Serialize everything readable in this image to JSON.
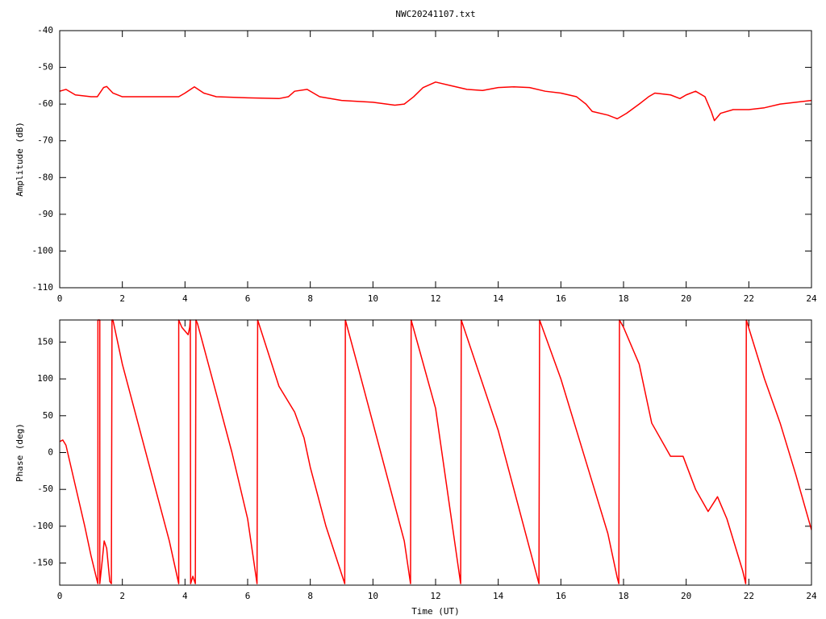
{
  "chart_data": [
    {
      "type": "line",
      "title": "NWC20241107.txt",
      "ylabel": "Amplitude (dB)",
      "xlim": [
        0,
        24
      ],
      "xticks": [
        0,
        2,
        4,
        6,
        8,
        10,
        12,
        14,
        16,
        18,
        20,
        22,
        24
      ],
      "ylim": [
        -110,
        -40
      ],
      "yticks": [
        -110,
        -100,
        -90,
        -80,
        -70,
        -60,
        -50,
        -40
      ],
      "x": [
        0,
        0.2,
        0.5,
        1,
        1.2,
        1.4,
        1.5,
        1.7,
        2,
        3,
        3.8,
        4,
        4.3,
        4.6,
        5,
        6,
        7,
        7.3,
        7.5,
        7.9,
        8.3,
        9,
        10,
        10.7,
        11,
        11.3,
        11.6,
        12,
        12.5,
        13,
        13.5,
        14,
        14.5,
        15,
        15.5,
        16,
        16.5,
        16.8,
        17,
        17.5,
        17.8,
        18.1,
        18.5,
        18.8,
        19,
        19.5,
        19.8,
        20,
        20.3,
        20.6,
        20.8,
        20.9,
        21.1,
        21.5,
        22,
        22.5,
        23,
        23.5,
        24
      ],
      "series": [
        {
          "color": "#ff0000",
          "values": [
            -56.5,
            -56,
            -57.5,
            -58,
            -58,
            -55.5,
            -55.2,
            -57,
            -58,
            -58,
            -58,
            -57,
            -55.3,
            -57,
            -58,
            -58.3,
            -58.5,
            -58,
            -56.5,
            -56,
            -58,
            -59,
            -59.5,
            -60.3,
            -60,
            -58,
            -55.5,
            -54,
            -55,
            -56,
            -56.3,
            -55.5,
            -55.3,
            -55.5,
            -56.5,
            -57,
            -58,
            -60,
            -62,
            -63,
            -64,
            -62.5,
            -60,
            -58,
            -57,
            -57.5,
            -58.5,
            -57.5,
            -56.5,
            -58,
            -62,
            -64.5,
            -62.5,
            -61.5,
            -61.5,
            -61,
            -60,
            -59.5,
            -59
          ]
        }
      ]
    },
    {
      "type": "line",
      "xlabel": "Time (UT)",
      "ylabel": "Phase (deg)",
      "xlim": [
        0,
        24
      ],
      "xticks": [
        0,
        2,
        4,
        6,
        8,
        10,
        12,
        14,
        16,
        18,
        20,
        22,
        24
      ],
      "ylim": [
        -180,
        180
      ],
      "yticks": [
        -150,
        -100,
        -50,
        0,
        50,
        100,
        150
      ],
      "x": [
        0,
        0.1,
        0.2,
        0.5,
        0.8,
        1.0,
        1.2,
        1.22,
        1.22,
        1.28,
        1.28,
        1.35,
        1.42,
        1.5,
        1.6,
        1.65,
        1.67,
        1.7,
        2,
        2.5,
        3,
        3.5,
        3.8,
        3.8,
        3.9,
        4.1,
        4.15,
        4.17,
        4.18,
        4.25,
        4.33,
        4.35,
        4.4,
        5,
        5.5,
        6,
        6.3,
        6.32,
        7,
        7.5,
        7.8,
        8,
        8.5,
        9.1,
        9.12,
        9.5,
        10,
        10.5,
        11,
        11.2,
        11.22,
        12,
        12.8,
        12.82,
        14,
        15.3,
        15.32,
        16,
        16.5,
        17,
        17.5,
        17.8,
        17.85,
        17.87,
        18,
        18.5,
        18.9,
        19.5,
        19.9,
        20.3,
        20.7,
        21,
        21.3,
        21.8,
        21.9,
        21.92,
        22.5,
        23,
        23.5,
        24
      ],
      "series": [
        {
          "color": "#ff0000",
          "values": [
            15,
            17,
            10,
            -45,
            -100,
            -140,
            -175,
            -178,
            180,
            180,
            -178,
            -150,
            -120,
            -130,
            -175,
            -178,
            180,
            180,
            120,
            40,
            -40,
            -120,
            -178,
            180,
            170,
            160,
            170,
            180,
            -178,
            -168,
            -178,
            180,
            175,
            80,
            0,
            -90,
            -178,
            180,
            90,
            55,
            20,
            -20,
            -100,
            -178,
            180,
            120,
            40,
            -40,
            -120,
            -178,
            180,
            60,
            -178,
            180,
            30,
            -178,
            180,
            100,
            30,
            -40,
            -110,
            -170,
            -178,
            180,
            170,
            120,
            40,
            -5,
            -5,
            -50,
            -80,
            -60,
            -90,
            -160,
            -178,
            180,
            100,
            40,
            -30,
            -105
          ]
        }
      ]
    }
  ]
}
